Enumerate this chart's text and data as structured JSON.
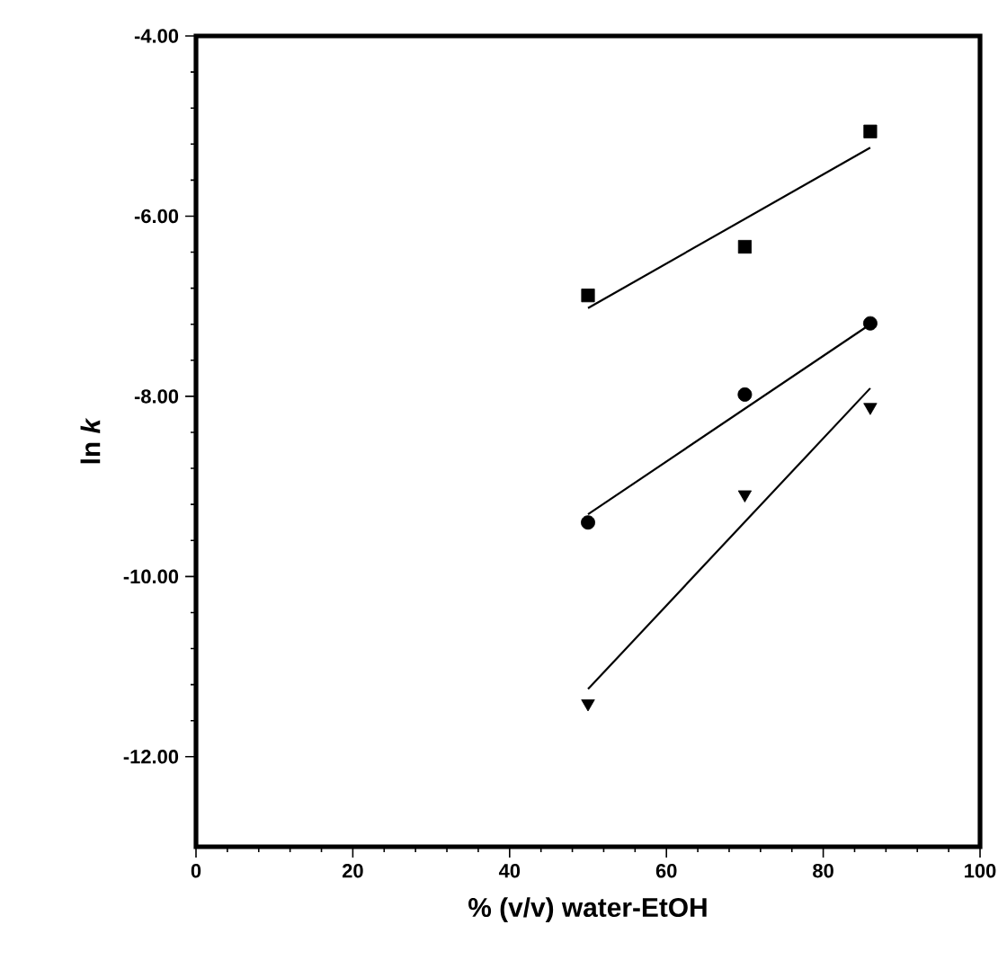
{
  "chart_data": {
    "type": "scatter",
    "xlabel": "% (v/v) water-EtOH",
    "ylabel": "ln *k*",
    "xlim": [
      0,
      100
    ],
    "ylim": [
      -13,
      -4
    ],
    "xticks": [
      0,
      20,
      40,
      60,
      80,
      100
    ],
    "yticks": [
      {
        "value": -4,
        "label": "-4.00"
      },
      {
        "value": -6,
        "label": "-6.00"
      },
      {
        "value": -8,
        "label": "-8.00"
      },
      {
        "value": -10,
        "label": "-10.00"
      },
      {
        "value": -12,
        "label": "-12.00"
      }
    ],
    "series": [
      {
        "marker": "square",
        "color": "#000000",
        "x": [
          50,
          70,
          86
        ],
        "values": [
          -6.88,
          -6.34,
          -5.06
        ]
      },
      {
        "marker": "circle",
        "color": "#000000",
        "x": [
          50,
          70,
          86
        ],
        "values": [
          -9.4,
          -7.98,
          -7.19
        ]
      },
      {
        "marker": "triangle",
        "color": "#000000",
        "x": [
          50,
          70,
          86
        ],
        "values": [
          -11.41,
          -9.09,
          -8.12
        ]
      },
      {
        "type": "line",
        "marker": "none",
        "color": "#000000",
        "x": [
          50,
          86
        ],
        "values": [
          -7.02,
          -5.24
        ]
      },
      {
        "type": "line",
        "marker": "none",
        "color": "#000000",
        "x": [
          50,
          86
        ],
        "values": [
          -9.31,
          -7.2
        ]
      },
      {
        "type": "line",
        "marker": "none",
        "color": "#000000",
        "x": [
          50,
          86
        ],
        "values": [
          -11.25,
          -7.91
        ]
      }
    ]
  }
}
